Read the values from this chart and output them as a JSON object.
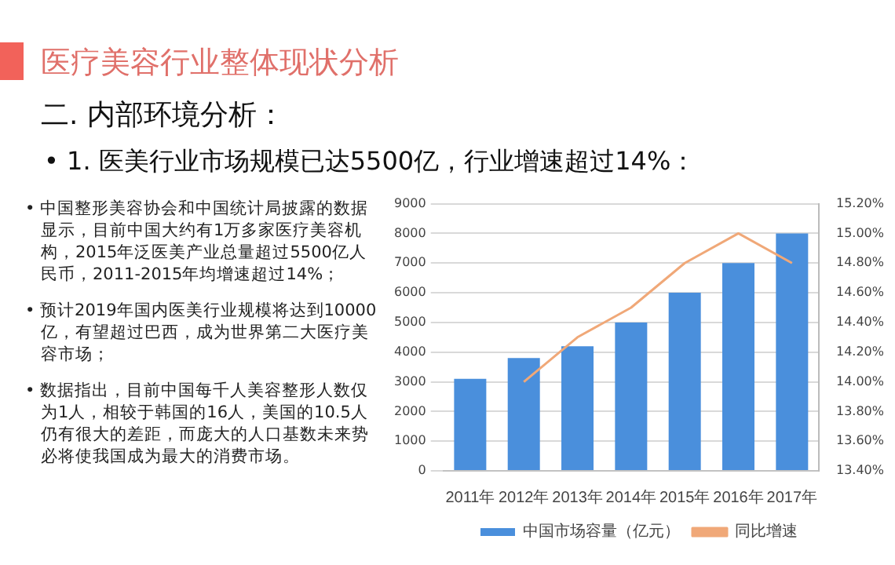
{
  "chart_data": {
    "type": "bar",
    "title": "医疗美容行业整体现状分析",
    "subtitle": "二. 内部环境分析：",
    "annotations": [
      "•   1. 医美行业市场规模已达5500亿，行业增速超过14%：",
      "• 中国整形美容协会和中国统计局披露的数据显示，目前中国大约有1万多家医疗美容机构，2015年泛医美产业总量超过5500亿人民币，2011-2015年均增速超过14%；",
      "• 预计2019年国内医美行业规模将达到10000亿，有望超过巴西，成为世界第二大医疗美容市场；",
      "• 数据指出，目前中国每千人美容整形人数仅为1人，相较于韩国的16人，美国的10.5人仍有很大的差距，而庞大的人口基数未来势必将使我国成为最大的消费市场。"
    ],
    "categories": [
      "2011年",
      "2012年",
      "2013年",
      "2014年",
      "2015年",
      "2016年",
      "2017年"
    ],
    "series": [
      {
        "name": "中国市场容量（亿元）",
        "color": "#4a8fdc",
        "values": [
          3100,
          3800,
          4200,
          5000,
          6000,
          7000,
          8000
        ]
      },
      {
        "name": "同比增速",
        "type": "line",
        "axis": "y2",
        "color": "#f0a878",
        "values": [
          null,
          14.0,
          14.3,
          14.5,
          14.8,
          15.0,
          14.8
        ]
      }
    ],
    "ylim": [
      0,
      9000
    ],
    "yticks": [
      0,
      1000,
      2000,
      3000,
      4000,
      5000,
      6000,
      7000,
      8000,
      9000
    ],
    "y2lim": [
      13.4,
      15.2
    ],
    "y2ticks": [
      {
        "value": 13.4,
        "label": "13.40%"
      },
      {
        "value": 13.6,
        "label": "13.60%"
      },
      {
        "value": 13.8,
        "label": "13.80%"
      },
      {
        "value": 14.0,
        "label": "14.00%"
      },
      {
        "value": 14.2,
        "label": "14.20%"
      },
      {
        "value": 14.4,
        "label": "14.40%"
      },
      {
        "value": 14.6,
        "label": "14.60%"
      },
      {
        "value": 14.8,
        "label": "14.80%"
      },
      {
        "value": 15.0,
        "label": "15.00%"
      },
      {
        "value": 15.2,
        "label": "15.20%"
      }
    ],
    "grid": "y",
    "legend": "bottom",
    "marker": "none"
  }
}
